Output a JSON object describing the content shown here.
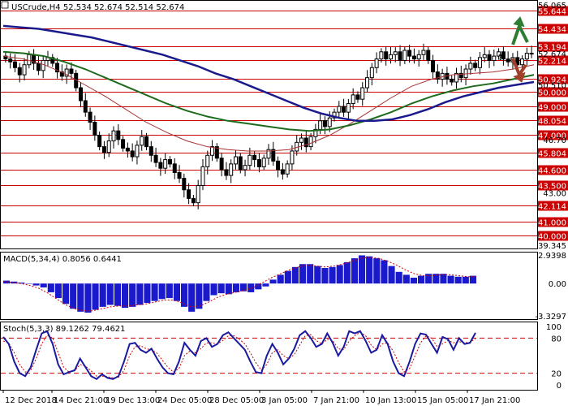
{
  "colors": {
    "background": "#ffffff",
    "grid": "#d4d4d4",
    "level_line": "#cc0000",
    "level_label_bg": "#cc0000",
    "candle": "#000000",
    "ma_blue": "#1a1a8c",
    "ma_green": "#1e6b1e",
    "ma_red": "#a83232",
    "macd_hist": "#1a1acc",
    "macd_signal": "#cc0000",
    "stoch_main": "#1a1aa0",
    "stoch_signal": "#cc0000",
    "arrow_up": "#2e7d32",
    "arrow_down": "#a0402a",
    "question": "#c0501f"
  },
  "chart_data": [
    {
      "type": "candlestick",
      "header": {
        "symbol": "USCrude,H4",
        "open": "52.534",
        "high": "52.674",
        "low": "52.514",
        "close": "52.674"
      },
      "ylim": [
        39.345,
        56.065
      ],
      "price_scale_ticks": [
        "56.065",
        "52.674",
        "50.510",
        "46.70",
        "43.00",
        "39.345"
      ],
      "levels": [
        {
          "value": 55.644,
          "label": "55.644"
        },
        {
          "value": 54.434,
          "label": "54.434"
        },
        {
          "value": 53.194,
          "label": "53.194"
        },
        {
          "value": 52.214,
          "label": "52.214"
        },
        {
          "value": 50.924,
          "label": "50.924"
        },
        {
          "value": 50.0,
          "label": "50.000"
        },
        {
          "value": 49.0,
          "label": "49.000"
        },
        {
          "value": 48.054,
          "label": "48.054"
        },
        {
          "value": 47.0,
          "label": "47.000"
        },
        {
          "value": 45.804,
          "label": "45.804"
        },
        {
          "value": 44.6,
          "label": "44.600"
        },
        {
          "value": 43.5,
          "label": "43.500"
        },
        {
          "value": 42.114,
          "label": "42.114"
        },
        {
          "value": 41.0,
          "label": "41.000"
        },
        {
          "value": 40.0,
          "label": "40.000"
        }
      ],
      "x_ticks": [
        "12 Dec 2018",
        "14 Dec 21:00",
        "19 Dec 13:00",
        "24 Dec 05:00",
        "28 Dec 05:00",
        "3 Jan 05:00",
        "7 Jan 21:00",
        "10 Jan 13:00",
        "15 Jan 05:00",
        "17 Jan 21:00"
      ],
      "close_series": [
        52.3,
        52.1,
        51.7,
        51.2,
        51.9,
        52.6,
        52.0,
        51.5,
        52.2,
        52.4,
        52.0,
        51.4,
        51.1,
        51.6,
        51.3,
        50.3,
        49.4,
        48.6,
        47.9,
        47.0,
        46.2,
        45.8,
        46.6,
        47.3,
        46.7,
        46.1,
        45.9,
        45.5,
        46.3,
        46.9,
        46.2,
        45.6,
        45.1,
        44.7,
        45.3,
        45.0,
        44.4,
        44.0,
        43.2,
        42.6,
        42.3,
        43.5,
        44.8,
        45.6,
        46.2,
        45.4,
        44.6,
        44.2,
        45.0,
        45.5,
        44.6,
        44.9,
        45.6,
        45.3,
        44.8,
        45.4,
        46.0,
        45.2,
        44.6,
        44.3,
        45.0,
        45.9,
        46.5,
        46.8,
        46.2,
        46.9,
        47.4,
        48.0,
        47.6,
        48.2,
        48.6,
        49.0,
        48.6,
        49.2,
        49.8,
        49.5,
        50.3,
        51.0,
        51.7,
        52.3,
        52.8,
        52.3,
        52.6,
        52.8,
        52.2,
        52.9,
        52.5,
        52.3,
        52.6,
        52.9,
        52.2,
        51.4,
        50.9,
        51.3,
        50.9,
        50.7,
        51.3,
        51.0,
        51.6,
        52.0,
        51.7,
        52.4,
        52.6,
        52.2,
        52.5,
        52.8,
        52.3,
        52.1,
        52.4,
        51.9,
        52.3,
        52.7,
        52.674
      ],
      "ma_blue": [
        54.6,
        54.5,
        54.4,
        54.2,
        54.0,
        53.8,
        53.5,
        53.2,
        52.9,
        52.6,
        52.2,
        51.8,
        51.3,
        50.9,
        50.4,
        49.9,
        49.4,
        48.9,
        48.5,
        48.2,
        48.0,
        48.0,
        48.1,
        48.4,
        48.8,
        49.3,
        49.7,
        50.0,
        50.3,
        50.5,
        50.7
      ],
      "ma_green": [
        52.8,
        52.7,
        52.5,
        52.1,
        51.6,
        51.0,
        50.4,
        49.8,
        49.2,
        48.7,
        48.3,
        48.0,
        47.8,
        47.6,
        47.4,
        47.3,
        47.4,
        47.7,
        48.1,
        48.6,
        49.2,
        49.7,
        50.1,
        50.4,
        50.6,
        50.9,
        51.2
      ],
      "ma_red": [
        52.5,
        52.3,
        51.9,
        51.3,
        50.5,
        49.7,
        48.8,
        47.9,
        47.2,
        46.6,
        46.2,
        46.0,
        45.9,
        45.9,
        46.0,
        46.4,
        47.0,
        47.8,
        48.7,
        49.6,
        50.4,
        50.9,
        51.2,
        51.3,
        51.4,
        51.6,
        51.9
      ]
    },
    {
      "type": "bar",
      "indicator": "MACD(5,34,4) 0.8056 0.6441",
      "ticks": [
        "2.9398",
        "0.00",
        "-3.3297"
      ],
      "ylim": [
        -3.3297,
        2.9398
      ],
      "values": [
        0.3,
        0.2,
        0.1,
        0.0,
        -0.2,
        -0.4,
        -0.9,
        -1.5,
        -2.1,
        -2.6,
        -2.9,
        -3.0,
        -2.7,
        -2.4,
        -2.2,
        -2.3,
        -2.5,
        -2.4,
        -2.2,
        -2.0,
        -1.8,
        -1.6,
        -1.5,
        -1.8,
        -2.4,
        -2.9,
        -2.6,
        -1.8,
        -1.2,
        -1.0,
        -1.1,
        -0.9,
        -0.8,
        -0.9,
        -0.6,
        -0.3,
        0.4,
        0.9,
        1.3,
        1.7,
        2.0,
        2.0,
        1.8,
        1.6,
        1.7,
        1.9,
        2.2,
        2.6,
        2.9,
        2.8,
        2.6,
        2.4,
        1.8,
        1.2,
        0.9,
        0.6,
        0.8,
        1.0,
        1.0,
        1.0,
        0.8,
        0.7,
        0.7,
        0.8
      ],
      "signal": [
        0.2,
        0.1,
        0.0,
        -0.2,
        -0.5,
        -1.0,
        -1.6,
        -2.2,
        -2.6,
        -2.8,
        -2.8,
        -2.6,
        -2.4,
        -2.3,
        -2.3,
        -2.2,
        -2.1,
        -1.9,
        -1.7,
        -1.7,
        -2.0,
        -2.4,
        -2.3,
        -1.9,
        -1.4,
        -1.1,
        -0.9,
        -0.7,
        -0.4,
        0.1,
        0.6,
        1.0,
        1.4,
        1.7,
        1.9,
        1.8,
        1.7,
        1.8,
        2.0,
        2.3,
        2.6,
        2.7,
        2.6,
        2.3,
        1.9,
        1.4,
        1.0,
        0.8,
        0.8,
        0.9,
        0.9,
        0.8,
        0.7,
        0.7
      ]
    },
    {
      "type": "line",
      "indicator": "Stoch(5,3,3) 89.1262 79.4621",
      "ticks": [
        "100",
        "80",
        "20",
        "0"
      ],
      "ylim": [
        0,
        100
      ],
      "levels": [
        80,
        20
      ],
      "main": [
        82,
        70,
        40,
        20,
        15,
        30,
        60,
        88,
        92,
        70,
        35,
        18,
        22,
        25,
        45,
        30,
        15,
        10,
        18,
        12,
        10,
        15,
        40,
        70,
        72,
        60,
        55,
        62,
        45,
        30,
        20,
        18,
        40,
        72,
        60,
        50,
        75,
        80,
        65,
        70,
        85,
        90,
        80,
        70,
        60,
        40,
        22,
        20,
        50,
        70,
        55,
        35,
        45,
        62,
        85,
        92,
        80,
        65,
        70,
        88,
        72,
        50,
        65,
        92,
        88,
        92,
        75,
        55,
        60,
        85,
        70,
        40,
        20,
        15,
        40,
        70,
        88,
        86,
        70,
        55,
        82,
        78,
        60,
        80,
        70,
        72,
        89
      ],
      "signal": [
        75,
        72,
        55,
        35,
        22,
        25,
        45,
        70,
        85,
        80,
        55,
        30,
        22,
        24,
        35,
        32,
        24,
        15,
        15,
        14,
        12,
        13,
        25,
        50,
        65,
        67,
        62,
        60,
        54,
        42,
        30,
        22,
        28,
        50,
        58,
        55,
        62,
        72,
        72,
        70,
        76,
        84,
        84,
        78,
        70,
        55,
        38,
        25,
        35,
        55,
        60,
        50,
        45,
        52,
        68,
        84,
        86,
        76,
        70,
        78,
        76,
        62,
        60,
        75,
        84,
        90,
        84,
        68,
        60,
        70,
        72,
        58,
        38,
        22,
        28,
        50,
        72,
        84,
        80,
        66,
        70,
        76,
        72,
        74,
        72,
        73,
        79
      ]
    }
  ],
  "annotations": {
    "question": "?"
  }
}
